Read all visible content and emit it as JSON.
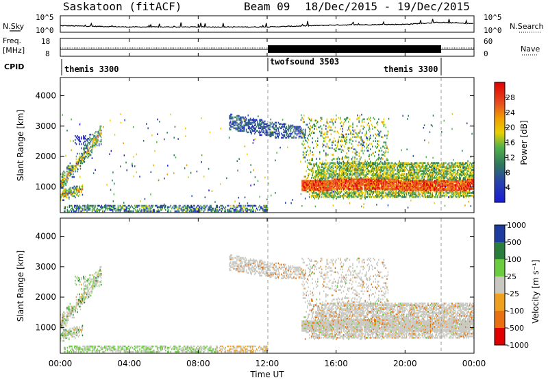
{
  "header": {
    "title": "Saskatoon (fitACF)",
    "beam": "Beam 09",
    "date_range": "18/Dec/2015 - 19/Dec/2015"
  },
  "strip": {
    "nsky_label": "N.Sky",
    "nsky_ticks": [
      "10^5",
      "10^0"
    ],
    "nsearch_label": "N.Search",
    "freq_label": "Freq.",
    "freq_unit": "[MHz]",
    "freq_ticks": [
      "18",
      "8"
    ],
    "nave_label": "Nave",
    "nave_ticks": [
      "60",
      "0"
    ],
    "cpid_label": "CPID",
    "cpid_segments": [
      "themis 3300",
      "twofsound 3503",
      "themis 3300"
    ]
  },
  "panels": {
    "power": {
      "ylabel": "Slant Range [km]",
      "cbar_label": "Power [dB]",
      "cbar_ticks": [
        "4",
        "8",
        "12",
        "16",
        "20",
        "24",
        "28"
      ]
    },
    "velocity": {
      "ylabel": "Slant Range [km]",
      "cbar_label": "Velocity [m s⁻¹]",
      "cbar_ticks": [
        "-1000",
        "-500",
        "-100",
        "-25",
        "25",
        "100",
        "500",
        "1000"
      ]
    }
  },
  "xaxis": {
    "label": "Time UT",
    "ticks": [
      "00:00",
      "04:00",
      "08:00",
      "12:00",
      "16:00",
      "20:00",
      "00:00"
    ]
  },
  "yaxis": {
    "ticks": [
      "1000",
      "2000",
      "3000",
      "4000"
    ]
  },
  "colors": {
    "power_scale": [
      "#1a1ad6",
      "#2846a8",
      "#2f7a5a",
      "#52b24a",
      "#e8d000",
      "#f0a000",
      "#e85020",
      "#e00000"
    ],
    "velocity_scale": [
      "#1e3ca0",
      "#2a7e3c",
      "#6ccc40",
      "#c8c8c0",
      "#f0a020",
      "#e87010",
      "#e00000"
    ]
  },
  "chart_data": [
    {
      "type": "heatmap",
      "panel": "power",
      "title": "",
      "xlabel": "Time UT",
      "ylabel": "Slant Range [km]",
      "xlim": [
        "00:00",
        "24:00"
      ],
      "ylim": [
        150,
        4600
      ],
      "colorbar": {
        "label": "Power [dB]",
        "range": [
          0,
          32
        ],
        "ticks": [
          4,
          8,
          12,
          16,
          20,
          24,
          28
        ]
      },
      "regions": [
        {
          "t_start": 0.0,
          "t_end": 2.3,
          "range_start": 500,
          "range_end": 3000,
          "power_db": [
            8,
            28
          ]
        },
        {
          "t_start": 0.0,
          "t_end": 12.0,
          "range_start": 180,
          "range_end": 350,
          "power_db": [
            4,
            16
          ]
        },
        {
          "t_start": 9.8,
          "t_end": 14.0,
          "range_start": 2700,
          "range_end": 3400,
          "power_db": [
            4,
            12
          ]
        },
        {
          "t_start": 14.0,
          "t_end": 24.0,
          "range_start": 700,
          "range_end": 1700,
          "power_db": [
            12,
            30
          ]
        }
      ],
      "vlines": [
        "12:00",
        "22:00"
      ]
    },
    {
      "type": "heatmap",
      "panel": "velocity",
      "title": "",
      "xlabel": "Time UT",
      "ylabel": "Slant Range [km]",
      "xlim": [
        "00:00",
        "24:00"
      ],
      "ylim": [
        150,
        4600
      ],
      "colorbar": {
        "label": "Velocity [m s⁻¹]",
        "ticks": [
          -1000,
          -500,
          -100,
          -25,
          25,
          100,
          500,
          1000
        ]
      },
      "regions": [
        {
          "t_start": 0.0,
          "t_end": 2.3,
          "range_start": 500,
          "range_end": 3000,
          "velocity": "mixed (-25 to 100, ground scatter)"
        },
        {
          "t_start": 10.0,
          "t_end": 14.0,
          "range_start": 2700,
          "range_end": 3400,
          "velocity": "-25 to 25"
        },
        {
          "t_start": 14.0,
          "t_end": 24.0,
          "range_start": 700,
          "range_end": 3300,
          "velocity": "-25 to 25 with -500 patches"
        }
      ],
      "vlines": [
        "12:00",
        "22:00"
      ]
    },
    {
      "type": "line",
      "panel": "nsky",
      "ylim": [
        "10^0",
        "10^5"
      ],
      "series": [
        {
          "x": [
            "00:00",
            "04:00",
            "08:00",
            "12:00",
            "16:00",
            "20:00",
            "22:00",
            "24:00"
          ],
          "values": [
            2.0,
            1.6,
            1.6,
            1.6,
            2.2,
            2.4,
            3.0,
            2.6
          ]
        }
      ]
    },
    {
      "type": "line",
      "panel": "freq",
      "ylim": [
        8,
        18
      ],
      "series": [
        {
          "x": [
            "00:00",
            "12:00",
            "22:00",
            "24:00"
          ],
          "values": [
            10.6,
            10.6,
            10.6,
            10.6
          ]
        }
      ]
    },
    {
      "type": "line",
      "panel": "nave",
      "ylim": [
        0,
        60
      ],
      "series": [
        {
          "x": [
            "00:00",
            "12:00",
            "12:00",
            "22:00",
            "22:00",
            "24:00"
          ],
          "values": [
            20,
            20,
            23,
            23,
            20,
            20
          ]
        }
      ]
    }
  ]
}
